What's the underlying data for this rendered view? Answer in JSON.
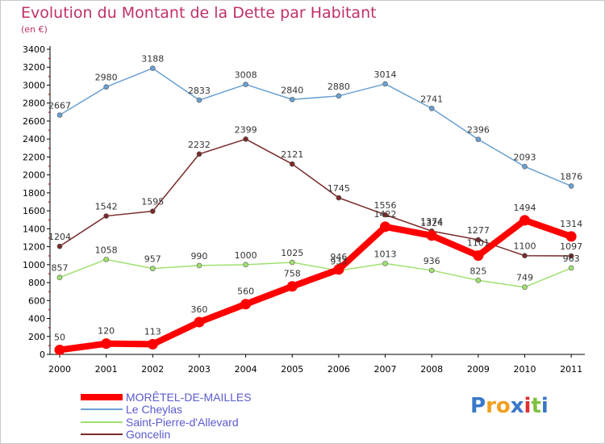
{
  "chart_data": {
    "type": "line",
    "title": "Evolution du Montant de la Dette par Habitant",
    "subtitle": "(en €)",
    "x": [
      "2000",
      "2001",
      "2002",
      "2003",
      "2004",
      "2005",
      "2006",
      "2007",
      "2008",
      "2009",
      "2010",
      "2011"
    ],
    "ylim": [
      0,
      3400
    ],
    "yticks": [
      0,
      200,
      400,
      600,
      800,
      1000,
      1200,
      1400,
      1600,
      1800,
      2000,
      2200,
      2400,
      2600,
      2800,
      3000,
      3200,
      3400
    ],
    "grid": false,
    "legend_position": "bottom-left",
    "series": [
      {
        "name": "MORÊTEL-DE-MAILLES",
        "color": "#ff0000",
        "values": [
          50,
          120,
          113,
          360,
          560,
          758,
          946,
          1422,
          1324,
          1101,
          1494,
          1314
        ]
      },
      {
        "name": "Le Cheylas",
        "color": "#6aa0d0",
        "values": [
          2667,
          2980,
          3188,
          2833,
          3008,
          2840,
          2880,
          3014,
          2741,
          2396,
          2093,
          1876
        ]
      },
      {
        "name": "Saint-Pierre-d'Allevard",
        "color": "#a0e070",
        "values": [
          857,
          1058,
          957,
          990,
          1000,
          1025,
          933,
          1013,
          936,
          825,
          749,
          963
        ]
      },
      {
        "name": "Goncelin",
        "color": "#7a2a2a",
        "values": [
          1204,
          1542,
          1595,
          2232,
          2399,
          2121,
          1745,
          1556,
          1374,
          1277,
          1100,
          1097
        ]
      }
    ]
  },
  "legend": {
    "items": [
      {
        "label": "MORÊTEL-DE-MAILLES",
        "color": "#ff0000"
      },
      {
        "label": "Le Cheylas",
        "color": "#6aa0d0"
      },
      {
        "label": "Saint-Pierre-d'Allevard",
        "color": "#a0e070"
      },
      {
        "label": "Goncelin",
        "color": "#7a2a2a"
      }
    ]
  },
  "logo": {
    "text": "Proxiti",
    "letter_colors": [
      "#3a78c8",
      "#f0a020",
      "#f0a020",
      "#3a78c8",
      "#e03030",
      "#80c040",
      "#3a78c8"
    ]
  }
}
